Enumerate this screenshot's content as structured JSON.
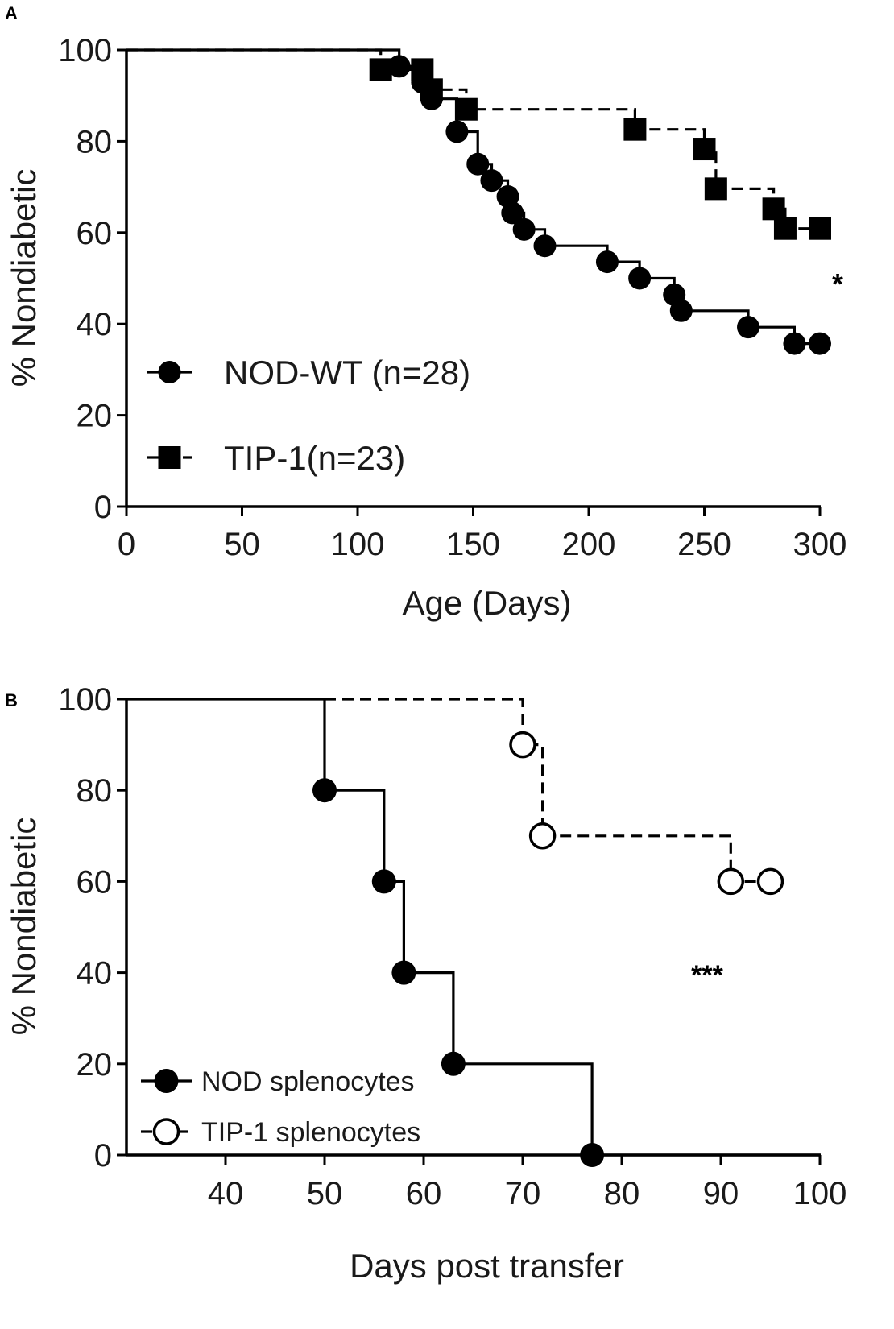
{
  "chart_data": [
    {
      "panel": "A",
      "type": "line",
      "subtype": "kaplan-meier",
      "title": "",
      "xlabel": "Age (Days)",
      "ylabel": "% Nondiabetic",
      "xlim": [
        0,
        300
      ],
      "ylim": [
        0,
        100
      ],
      "xticks": [
        0,
        50,
        100,
        150,
        200,
        250,
        300
      ],
      "yticks": [
        0,
        20,
        40,
        60,
        80,
        100
      ],
      "grid": false,
      "legend_position": "bottom-left",
      "significance": "*",
      "series": [
        {
          "name": "NOD-WT (n=28)",
          "line_style": "solid",
          "marker": "filled-circle",
          "steps": [
            [
              0,
              100
            ],
            [
              118,
              100
            ],
            [
              118,
              96.4
            ],
            [
              128,
              96.4
            ],
            [
              128,
              92.9
            ],
            [
              132,
              92.9
            ],
            [
              132,
              89.3
            ],
            [
              143,
              89.3
            ],
            [
              143,
              82.1
            ],
            [
              152,
              82.1
            ],
            [
              152,
              75
            ],
            [
              158,
              75
            ],
            [
              158,
              71.4
            ],
            [
              165,
              71.4
            ],
            [
              165,
              67.9
            ],
            [
              167,
              67.9
            ],
            [
              167,
              64.3
            ],
            [
              172,
              64.3
            ],
            [
              172,
              60.7
            ],
            [
              181,
              60.7
            ],
            [
              181,
              57.1
            ],
            [
              208,
              57.1
            ],
            [
              208,
              53.6
            ],
            [
              222,
              53.6
            ],
            [
              222,
              50
            ],
            [
              237,
              50
            ],
            [
              237,
              46.4
            ],
            [
              240,
              46.4
            ],
            [
              240,
              42.9
            ],
            [
              269,
              42.9
            ],
            [
              269,
              39.3
            ],
            [
              289,
              39.3
            ],
            [
              289,
              35.7
            ],
            [
              300,
              35.7
            ]
          ],
          "markers": [
            [
              118,
              96.4
            ],
            [
              128,
              92.9
            ],
            [
              132,
              89.3
            ],
            [
              143,
              82.1
            ],
            [
              152,
              75
            ],
            [
              158,
              71.4
            ],
            [
              165,
              67.9
            ],
            [
              167,
              64.3
            ],
            [
              172,
              60.7
            ],
            [
              181,
              57.1
            ],
            [
              208,
              53.6
            ],
            [
              222,
              50
            ],
            [
              237,
              46.4
            ],
            [
              240,
              42.9
            ],
            [
              269,
              39.3
            ],
            [
              289,
              35.7
            ],
            [
              300,
              35.7
            ]
          ]
        },
        {
          "name": "TIP-1(n=23)",
          "line_style": "dashed",
          "marker": "filled-square",
          "steps": [
            [
              0,
              100
            ],
            [
              110,
              100
            ],
            [
              110,
              95.7
            ],
            [
              128,
              95.7
            ],
            [
              128,
              91.3
            ],
            [
              147,
              91.3
            ],
            [
              147,
              87
            ],
            [
              220,
              87
            ],
            [
              220,
              82.6
            ],
            [
              250,
              82.6
            ],
            [
              250,
              78.3
            ],
            [
              255,
              78.3
            ],
            [
              255,
              69.6
            ],
            [
              280,
              69.6
            ],
            [
              280,
              65.2
            ],
            [
              285,
              65.2
            ],
            [
              285,
              60.9
            ],
            [
              300,
              60.9
            ]
          ],
          "markers": [
            [
              110,
              95.7
            ],
            [
              128,
              95.7
            ],
            [
              132,
              91.3
            ],
            [
              147,
              87
            ],
            [
              220,
              82.6
            ],
            [
              250,
              78.3
            ],
            [
              255,
              69.6
            ],
            [
              280,
              65.2
            ],
            [
              285,
              60.9
            ],
            [
              300,
              60.9
            ]
          ]
        }
      ]
    },
    {
      "panel": "B",
      "type": "line",
      "subtype": "kaplan-meier",
      "title": "",
      "xlabel": "Days post transfer",
      "ylabel": "% Nondiabetic",
      "xlim": [
        30,
        100
      ],
      "ylim": [
        0,
        100
      ],
      "xticks": [
        40,
        50,
        60,
        70,
        80,
        90,
        100
      ],
      "yticks": [
        0,
        20,
        40,
        60,
        80,
        100
      ],
      "grid": false,
      "legend_position": "bottom-left",
      "significance": "***",
      "series": [
        {
          "name": "NOD splenocytes",
          "line_style": "solid",
          "marker": "filled-circle",
          "steps": [
            [
              30,
              100
            ],
            [
              50,
              100
            ],
            [
              50,
              80
            ],
            [
              56,
              80
            ],
            [
              56,
              60
            ],
            [
              58,
              60
            ],
            [
              58,
              40
            ],
            [
              63,
              40
            ],
            [
              63,
              20
            ],
            [
              77,
              20
            ],
            [
              77,
              0
            ],
            [
              100,
              0
            ]
          ],
          "markers": [
            [
              50,
              80
            ],
            [
              56,
              60
            ],
            [
              58,
              40
            ],
            [
              63,
              20
            ],
            [
              77,
              0
            ]
          ]
        },
        {
          "name": "TIP-1 splenocytes",
          "line_style": "dashed",
          "marker": "open-circle",
          "steps": [
            [
              50,
              100
            ],
            [
              70,
              100
            ],
            [
              70,
              90
            ],
            [
              72,
              90
            ],
            [
              72,
              70
            ],
            [
              91,
              70
            ],
            [
              91,
              60
            ],
            [
              95,
              60
            ]
          ],
          "markers": [
            [
              70,
              90
            ],
            [
              72,
              70
            ],
            [
              91,
              60
            ],
            [
              95,
              60
            ]
          ]
        }
      ]
    }
  ]
}
